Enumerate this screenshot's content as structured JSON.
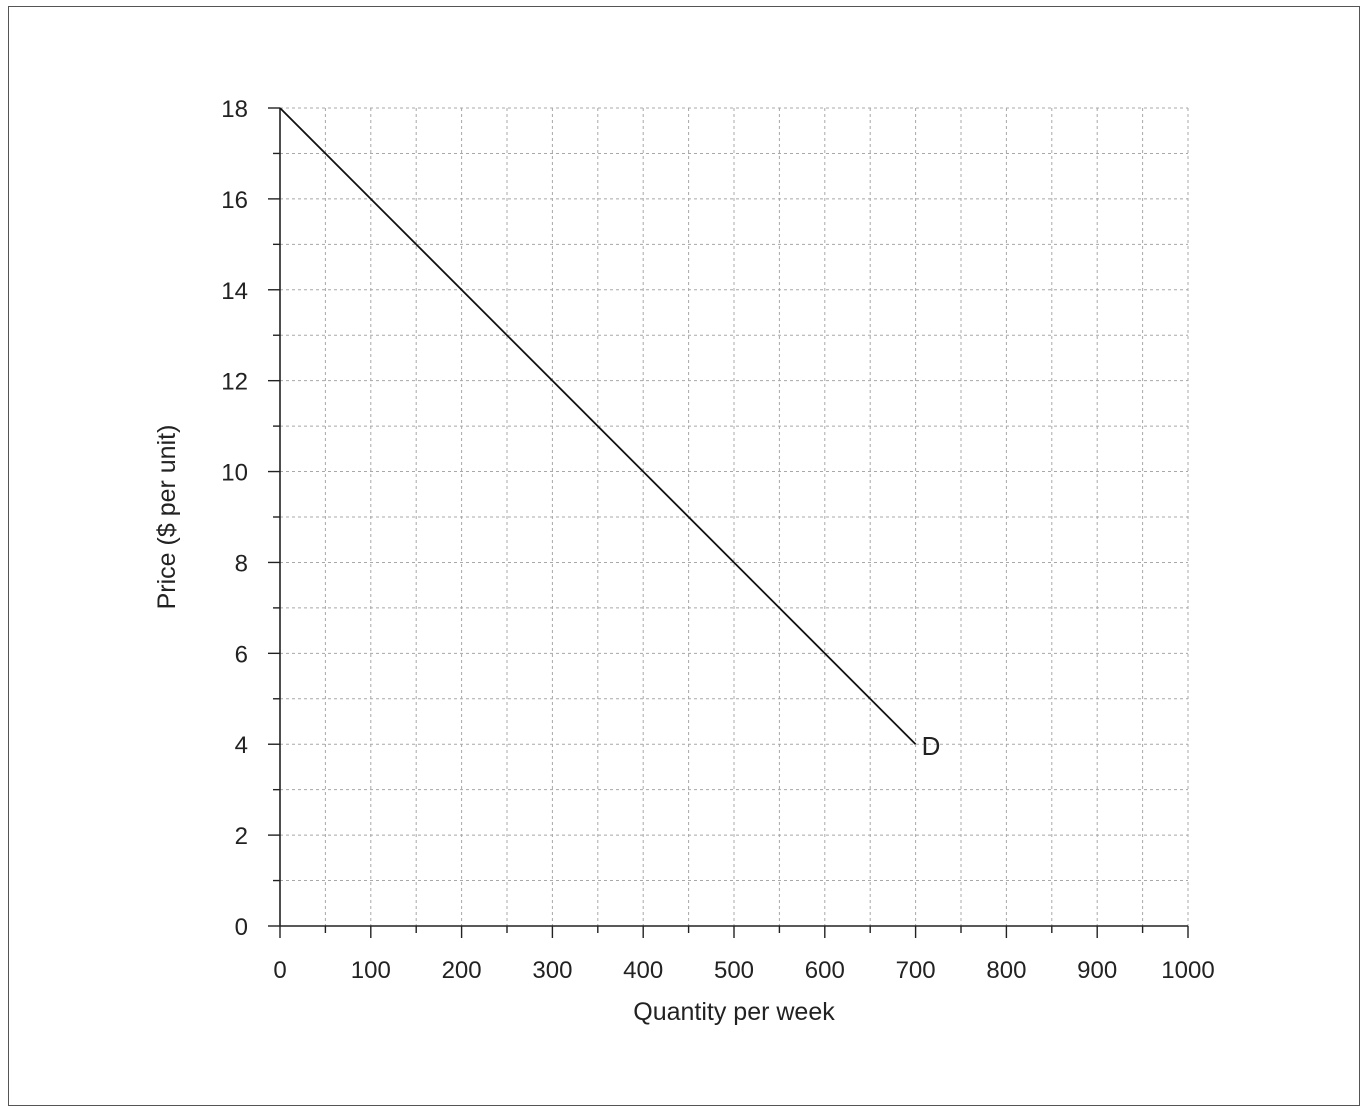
{
  "chart_data": {
    "type": "line",
    "title": "",
    "xlabel": "Quantity per week",
    "ylabel": "Price ($ per unit)",
    "xlim": [
      0,
      1000
    ],
    "ylim": [
      0,
      18
    ],
    "x_ticks": [
      0,
      100,
      200,
      300,
      400,
      500,
      600,
      700,
      800,
      900,
      1000
    ],
    "y_ticks": [
      0,
      2,
      4,
      6,
      8,
      10,
      12,
      14,
      16,
      18
    ],
    "x_minor_step": 50,
    "y_minor_step": 1,
    "grid": true,
    "grid_style": "dashed",
    "series": [
      {
        "name": "D",
        "x": [
          0,
          700
        ],
        "y": [
          18,
          4
        ]
      }
    ]
  }
}
